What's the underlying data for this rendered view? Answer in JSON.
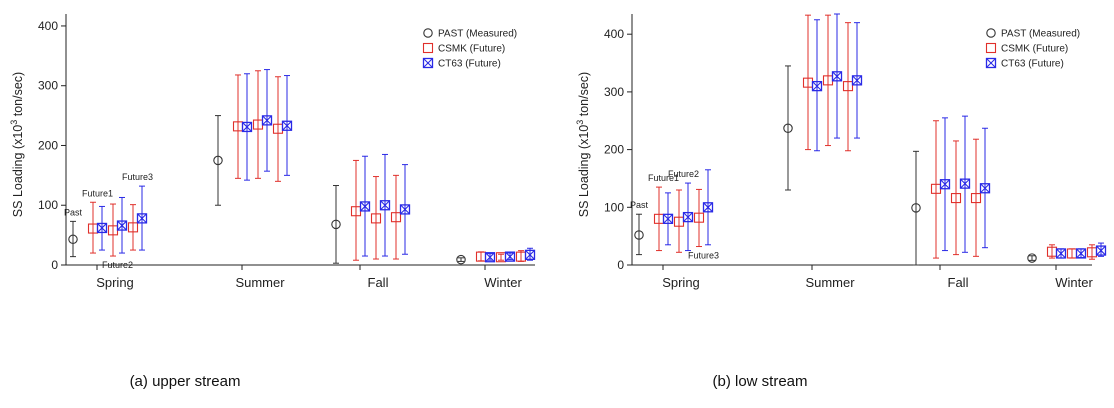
{
  "colors": {
    "past": "#333333",
    "csmk": "#e0302b",
    "ct63": "#2a2ae6",
    "axis": "#222222"
  },
  "chart_data": [
    {
      "type": "scatter",
      "caption": "(a) upper stream",
      "ylabel_main": "SS Loading (x10",
      "ylabel_sup": "3",
      "ylabel_tail": " ton/sec)",
      "ylim": [
        0,
        420
      ],
      "yticks": [
        0,
        100,
        200,
        300,
        400
      ],
      "categories": [
        "Spring",
        "Summer",
        "Fall",
        "Winter"
      ],
      "legend_position": "top-right",
      "series": [
        {
          "name": "PAST (Measured)",
          "marker": "circle",
          "points": [
            {
              "season": "Spring",
              "period": "Past",
              "mean": 43,
              "low": 14,
              "high": 73
            },
            {
              "season": "Summer",
              "period": "Past",
              "mean": 175,
              "low": 100,
              "high": 250
            },
            {
              "season": "Fall",
              "period": "Past",
              "mean": 68,
              "low": 3,
              "high": 133
            },
            {
              "season": "Winter",
              "period": "Past",
              "mean": 9,
              "low": 6,
              "high": 12
            }
          ]
        },
        {
          "name": "CSMK (Future)",
          "marker": "square",
          "points": [
            {
              "season": "Spring",
              "period": "Future1",
              "mean": 61,
              "low": 20,
              "high": 105
            },
            {
              "season": "Spring",
              "period": "Future2",
              "mean": 58,
              "low": 15,
              "high": 102
            },
            {
              "season": "Spring",
              "period": "Future3",
              "mean": 63,
              "low": 25,
              "high": 101
            },
            {
              "season": "Summer",
              "period": "Future1",
              "mean": 232,
              "low": 145,
              "high": 318
            },
            {
              "season": "Summer",
              "period": "Future2",
              "mean": 235,
              "low": 145,
              "high": 325
            },
            {
              "season": "Summer",
              "period": "Future3",
              "mean": 228,
              "low": 140,
              "high": 315
            },
            {
              "season": "Fall",
              "period": "Future1",
              "mean": 90,
              "low": 8,
              "high": 175
            },
            {
              "season": "Fall",
              "period": "Future2",
              "mean": 78,
              "low": 10,
              "high": 148
            },
            {
              "season": "Fall",
              "period": "Future3",
              "mean": 80,
              "low": 10,
              "high": 150
            },
            {
              "season": "Winter",
              "period": "Future1",
              "mean": 14,
              "low": 7,
              "high": 22
            },
            {
              "season": "Winter",
              "period": "Future2",
              "mean": 13,
              "low": 8,
              "high": 18
            },
            {
              "season": "Winter",
              "period": "Future3",
              "mean": 14,
              "low": 6,
              "high": 24
            }
          ]
        },
        {
          "name": "CT63 (Future)",
          "marker": "crossed-square",
          "points": [
            {
              "season": "Spring",
              "period": "Future1",
              "mean": 62,
              "low": 25,
              "high": 98
            },
            {
              "season": "Spring",
              "period": "Future2",
              "mean": 66,
              "low": 20,
              "high": 113
            },
            {
              "season": "Spring",
              "period": "Future3",
              "mean": 78,
              "low": 25,
              "high": 132
            },
            {
              "season": "Summer",
              "period": "Future1",
              "mean": 231,
              "low": 142,
              "high": 320
            },
            {
              "season": "Summer",
              "period": "Future2",
              "mean": 242,
              "low": 157,
              "high": 327
            },
            {
              "season": "Summer",
              "period": "Future3",
              "mean": 233,
              "low": 150,
              "high": 317
            },
            {
              "season": "Fall",
              "period": "Future1",
              "mean": 98,
              "low": 15,
              "high": 182
            },
            {
              "season": "Fall",
              "period": "Future2",
              "mean": 100,
              "low": 15,
              "high": 185
            },
            {
              "season": "Fall",
              "period": "Future3",
              "mean": 93,
              "low": 18,
              "high": 168
            },
            {
              "season": "Winter",
              "period": "Future1",
              "mean": 13,
              "low": 8,
              "high": 19
            },
            {
              "season": "Winter",
              "period": "Future2",
              "mean": 14,
              "low": 9,
              "high": 20
            },
            {
              "season": "Winter",
              "period": "Future3",
              "mean": 17,
              "low": 8,
              "high": 28
            }
          ]
        }
      ],
      "annotations": [
        {
          "text": "Past",
          "season": "Spring",
          "period": "Past",
          "position": "above"
        },
        {
          "text": "Future1",
          "season": "Spring",
          "period": "Future1",
          "position": "above"
        },
        {
          "text": "Future2",
          "season": "Spring",
          "period": "Future2",
          "position": "below"
        },
        {
          "text": "Future3",
          "season": "Spring",
          "period": "Future3",
          "position": "above"
        }
      ]
    },
    {
      "type": "scatter",
      "caption": "(b) low stream",
      "ylabel_main": "SS Loading (x10",
      "ylabel_sup": "3",
      "ylabel_tail": " ton/sec)",
      "ylim": [
        0,
        435
      ],
      "yticks": [
        0,
        100,
        200,
        300,
        400
      ],
      "categories": [
        "Spring",
        "Summer",
        "Fall",
        "Winter"
      ],
      "legend_position": "top-right",
      "series": [
        {
          "name": "PAST (Measured)",
          "marker": "circle",
          "points": [
            {
              "season": "Spring",
              "period": "Past",
              "mean": 52,
              "low": 18,
              "high": 88
            },
            {
              "season": "Summer",
              "period": "Past",
              "mean": 237,
              "low": 130,
              "high": 345
            },
            {
              "season": "Fall",
              "period": "Past",
              "mean": 99,
              "low": 0,
              "high": 197
            },
            {
              "season": "Winter",
              "period": "Past",
              "mean": 12,
              "low": 8,
              "high": 16
            }
          ]
        },
        {
          "name": "CSMK (Future)",
          "marker": "square",
          "points": [
            {
              "season": "Spring",
              "period": "Future1",
              "mean": 80,
              "low": 25,
              "high": 135
            },
            {
              "season": "Spring",
              "period": "Future2",
              "mean": 75,
              "low": 22,
              "high": 130
            },
            {
              "season": "Spring",
              "period": "Future3",
              "mean": 82,
              "low": 32,
              "high": 131
            },
            {
              "season": "Summer",
              "period": "Future1",
              "mean": 316,
              "low": 200,
              "high": 433
            },
            {
              "season": "Summer",
              "period": "Future2",
              "mean": 320,
              "low": 207,
              "high": 433
            },
            {
              "season": "Summer",
              "period": "Future3",
              "mean": 310,
              "low": 198,
              "high": 420
            },
            {
              "season": "Fall",
              "period": "Future1",
              "mean": 132,
              "low": 12,
              "high": 250
            },
            {
              "season": "Fall",
              "period": "Future2",
              "mean": 116,
              "low": 18,
              "high": 215
            },
            {
              "season": "Fall",
              "period": "Future3",
              "mean": 116,
              "low": 15,
              "high": 218
            },
            {
              "season": "Winter",
              "period": "Future1",
              "mean": 23,
              "low": 12,
              "high": 35
            },
            {
              "season": "Winter",
              "period": "Future2",
              "mean": 20,
              "low": 12,
              "high": 28
            },
            {
              "season": "Winter",
              "period": "Future3",
              "mean": 22,
              "low": 10,
              "high": 35
            }
          ]
        },
        {
          "name": "CT63 (Future)",
          "marker": "crossed-square",
          "points": [
            {
              "season": "Spring",
              "period": "Future1",
              "mean": 80,
              "low": 35,
              "high": 125
            },
            {
              "season": "Spring",
              "period": "Future2",
              "mean": 83,
              "low": 25,
              "high": 142
            },
            {
              "season": "Spring",
              "period": "Future3",
              "mean": 100,
              "low": 35,
              "high": 165
            },
            {
              "season": "Summer",
              "period": "Future1",
              "mean": 310,
              "low": 198,
              "high": 425
            },
            {
              "season": "Summer",
              "period": "Future2",
              "mean": 327,
              "low": 220,
              "high": 435
            },
            {
              "season": "Summer",
              "period": "Future3",
              "mean": 320,
              "low": 220,
              "high": 420
            },
            {
              "season": "Fall",
              "period": "Future1",
              "mean": 140,
              "low": 25,
              "high": 255
            },
            {
              "season": "Fall",
              "period": "Future2",
              "mean": 141,
              "low": 22,
              "high": 258
            },
            {
              "season": "Fall",
              "period": "Future3",
              "mean": 133,
              "low": 30,
              "high": 237
            },
            {
              "season": "Winter",
              "period": "Future1",
              "mean": 20,
              "low": 12,
              "high": 28
            },
            {
              "season": "Winter",
              "period": "Future2",
              "mean": 20,
              "low": 13,
              "high": 28
            },
            {
              "season": "Winter",
              "period": "Future3",
              "mean": 25,
              "low": 15,
              "high": 38
            }
          ]
        }
      ],
      "annotations": [
        {
          "text": "Past",
          "season": "Spring",
          "period": "Past",
          "position": "above"
        },
        {
          "text": "Future1",
          "season": "Spring",
          "period": "Future1",
          "position": "above"
        },
        {
          "text": "Future2",
          "season": "Spring",
          "period": "Future2",
          "position": "above"
        },
        {
          "text": "Future3",
          "season": "Spring",
          "period": "Future3",
          "position": "below"
        }
      ]
    }
  ]
}
